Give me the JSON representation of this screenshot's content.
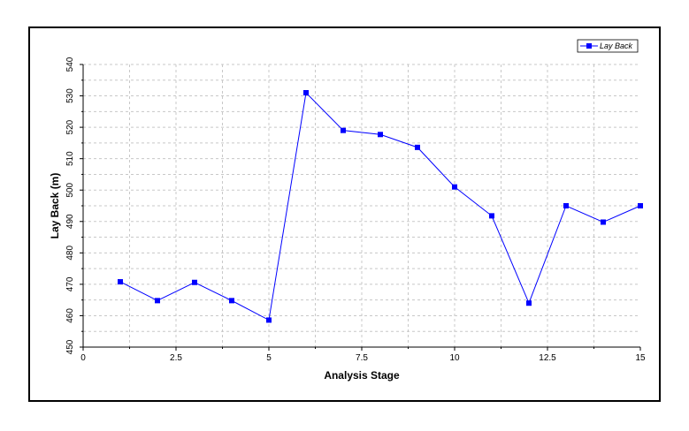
{
  "chart_data": {
    "type": "line",
    "xlabel": "Analysis Stage",
    "ylabel": "Lay Back (m)",
    "xlim": [
      0,
      15
    ],
    "ylim": [
      450,
      540
    ],
    "x_ticks": [
      0,
      2.5,
      5,
      7.5,
      10,
      12.5,
      15
    ],
    "y_ticks": [
      450,
      460,
      470,
      480,
      490,
      500,
      510,
      520,
      530,
      540
    ],
    "grid": true,
    "legend_position": "top-right",
    "series": [
      {
        "name": "Lay Back",
        "color": "#0000ff",
        "marker": "square",
        "x": [
          1,
          2,
          3,
          4,
          5,
          6,
          7,
          8,
          9,
          10,
          11,
          12,
          13,
          14,
          15
        ],
        "y": [
          470.8,
          464.8,
          470.6,
          464.8,
          458.6,
          531.0,
          519.0,
          517.7,
          513.6,
          501.0,
          491.8,
          464.0,
          495.0,
          489.8,
          495.0
        ]
      }
    ]
  }
}
